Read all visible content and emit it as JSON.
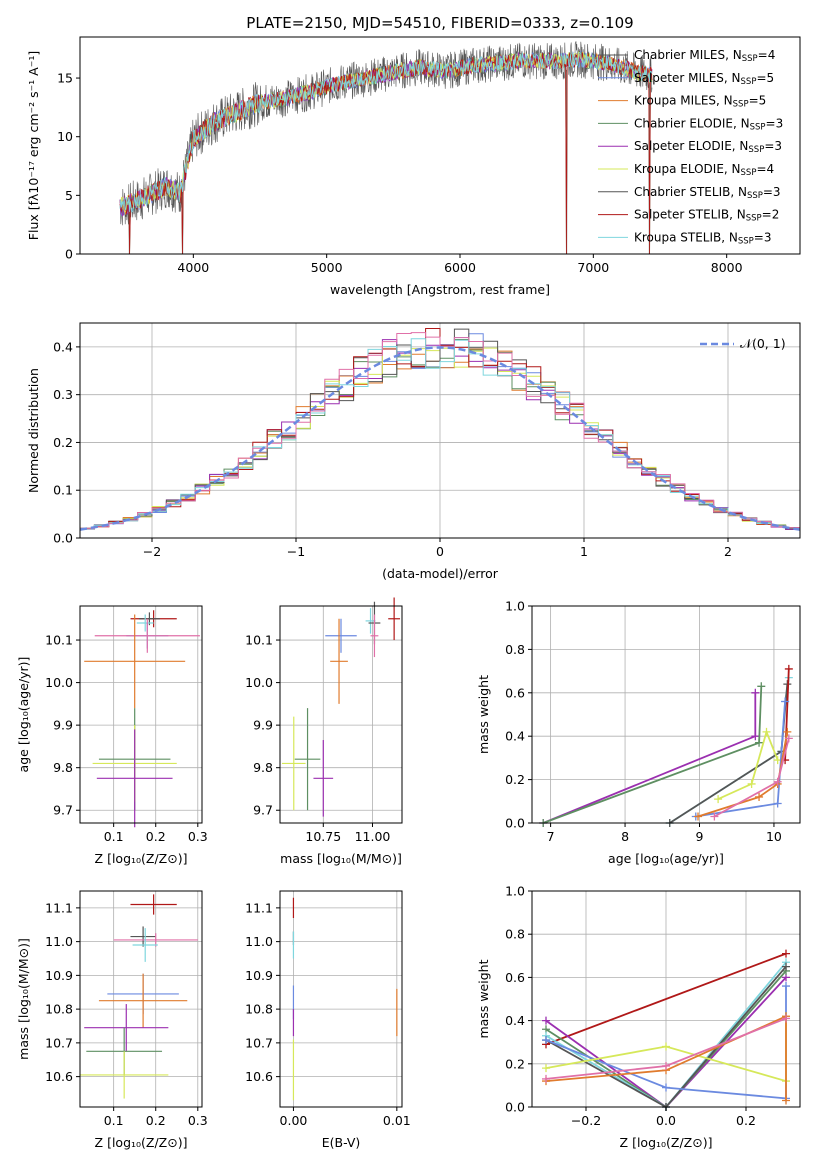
{
  "colors": {
    "Chabrier MILES": "#6b8ae0",
    "Salpeter MILES": "#5a7ad6",
    "Kroupa MILES": "#e07b2e",
    "Chabrier ELODIE": "#5e8f62",
    "Salpeter ELODIE": "#9b2fb0",
    "Kroupa ELODIE": "#d6e85a",
    "Chabrier STELIB": "#555555",
    "Salpeter STELIB": "#b01818",
    "Kroupa STELIB": "#7fd6de",
    "pink": "#e070a8"
  },
  "chart_data": [
    {
      "id": "spectrum",
      "type": "line",
      "title": "PLATE=2150, MJD=54510, FIBERID=0333, z=0.109",
      "xlabel": "wavelength [Angstrom, rest frame]",
      "ylabel": "Flux [fλ10⁻¹⁷ erg cm⁻² s⁻¹ A⁻¹]",
      "xlim": [
        3150,
        8550
      ],
      "ylim": [
        0,
        18.5
      ],
      "xticks": [
        4000,
        5000,
        6000,
        7000,
        8000
      ],
      "yticks": [
        0,
        5,
        10,
        15
      ],
      "legend_position": "right",
      "legend": [
        {
          "label": "Chabrier MILES, N",
          "sub": "SSP",
          "suffix": "=4",
          "color_key": "Chabrier STELIB"
        },
        {
          "label": "Salpeter MILES, N",
          "sub": "SSP",
          "suffix": "=5",
          "color_key": "Chabrier MILES"
        },
        {
          "label": "Kroupa MILES, N",
          "sub": "SSP",
          "suffix": "=5",
          "color_key": "Kroupa MILES"
        },
        {
          "label": "Chabrier ELODIE, N",
          "sub": "SSP",
          "suffix": "=3",
          "color_key": "Chabrier ELODIE"
        },
        {
          "label": "Salpeter ELODIE, N",
          "sub": "SSP",
          "suffix": "=3",
          "color_key": "Salpeter ELODIE"
        },
        {
          "label": "Kroupa ELODIE, N",
          "sub": "SSP",
          "suffix": "=4",
          "color_key": "Kroupa ELODIE"
        },
        {
          "label": "Chabrier STELIB, N",
          "sub": "SSP",
          "suffix": "=3",
          "color_key": "Chabrier STELIB"
        },
        {
          "label": "Salpeter STELIB, N",
          "sub": "SSP",
          "suffix": "=2",
          "color_key": "Salpeter STELIB"
        },
        {
          "label": "Kroupa STELIB, N",
          "sub": "SSP",
          "suffix": "=3",
          "color_key": "Kroupa STELIB"
        }
      ],
      "continuum": [
        [
          3450,
          4.0
        ],
        [
          3600,
          4.6
        ],
        [
          3800,
          5.8
        ],
        [
          3900,
          5.2
        ],
        [
          4000,
          9.8
        ],
        [
          4150,
          11.2
        ],
        [
          4300,
          12.0
        ],
        [
          4500,
          12.9
        ],
        [
          4700,
          13.3
        ],
        [
          4900,
          13.9
        ],
        [
          5100,
          14.6
        ],
        [
          5300,
          15.0
        ],
        [
          5500,
          15.5
        ],
        [
          5700,
          15.9
        ],
        [
          5900,
          15.6
        ],
        [
          6100,
          16.1
        ],
        [
          6300,
          16.3
        ],
        [
          6500,
          16.5
        ],
        [
          6700,
          16.4
        ],
        [
          6900,
          16.6
        ],
        [
          7100,
          16.3
        ],
        [
          7300,
          15.6
        ],
        [
          7400,
          15.3
        ]
      ],
      "drops": [
        3520,
        3920,
        6800,
        7420
      ]
    },
    {
      "id": "residuals",
      "type": "area",
      "xlabel": "(data-model)/error",
      "ylabel": "Normed distribution",
      "xlim": [
        -2.5,
        2.5
      ],
      "ylim": [
        0,
        0.45
      ],
      "xticks": [
        -2,
        -1,
        0,
        1,
        2
      ],
      "ytick_labels": [
        "0.0",
        "0.1",
        "0.2",
        "0.3",
        "0.4"
      ],
      "legend": "𝒩(0, 1)",
      "legend_position": "top-right",
      "bin_width": 0.1
    },
    {
      "id": "Z-age",
      "type": "scatter",
      "xlabel": "Z [log₁₀(Z/Z⊙)]",
      "ylabel": "age  [log₁₀(age/yr)]",
      "xlim": [
        0.02,
        0.31
      ],
      "ylim": [
        9.67,
        10.18
      ],
      "xtick_labels": [
        "0.1",
        "0.2",
        "0.3"
      ],
      "ytick_labels": [
        "9.7",
        "9.8",
        "9.9",
        "10.0",
        "10.1"
      ],
      "points": [
        {
          "c": "Salpeter STELIB",
          "x": 0.195,
          "xe": 0.055,
          "y": 10.15,
          "ye": 0.02
        },
        {
          "c": "Chabrier STELIB",
          "x": 0.185,
          "xe": 0.025,
          "y": 10.15,
          "ye": 0.015
        },
        {
          "c": "Kroupa STELIB",
          "x": 0.175,
          "xe": 0.02,
          "y": 10.14,
          "ye": 0.02
        },
        {
          "c": "Chabrier MILES",
          "x": 0.18,
          "xe": 0.05,
          "y": 10.11,
          "ye": 0.03
        },
        {
          "c": "pink",
          "x": 0.18,
          "xe": 0.125,
          "y": 10.11,
          "ye": 0.04
        },
        {
          "c": "Kroupa MILES",
          "x": 0.15,
          "xe": 0.12,
          "y": 10.05,
          "ye": 0.11
        },
        {
          "c": "Chabrier ELODIE",
          "x": 0.15,
          "xe": 0.085,
          "y": 9.82,
          "ye": 0.12
        },
        {
          "c": "Kroupa ELODIE",
          "x": 0.15,
          "xe": 0.1,
          "y": 9.81,
          "ye": 0.09
        },
        {
          "c": "Salpeter ELODIE",
          "x": 0.15,
          "xe": 0.09,
          "y": 9.775,
          "ye": 0.115
        }
      ]
    },
    {
      "id": "mass-age",
      "type": "scatter",
      "xlabel": "mass [log₁₀(M/M⊙)]",
      "ylabel": "",
      "xlim": [
        10.53,
        11.15
      ],
      "ylim": [
        9.67,
        10.18
      ],
      "xtick_labels": [
        "10.75",
        "11.00"
      ],
      "ytick_labels": [
        "9.7",
        "9.8",
        "9.9",
        "10.0",
        "10.1"
      ],
      "points": [
        {
          "c": "Salpeter STELIB",
          "x": 11.11,
          "xe": 0.03,
          "y": 10.15,
          "ye": 0.05
        },
        {
          "c": "Kroupa STELIB",
          "x": 10.99,
          "xe": 0.025,
          "y": 10.145,
          "ye": 0.03
        },
        {
          "c": "Chabrier STELIB",
          "x": 11.01,
          "xe": 0.03,
          "y": 10.14,
          "ye": 0.05
        },
        {
          "c": "Chabrier MILES",
          "x": 10.84,
          "xe": 0.08,
          "y": 10.11,
          "ye": 0.04
        },
        {
          "c": "pink",
          "x": 11.01,
          "xe": 0.02,
          "y": 10.11,
          "ye": 0.05
        },
        {
          "c": "Kroupa MILES",
          "x": 10.83,
          "xe": 0.045,
          "y": 10.05,
          "ye": 0.1
        },
        {
          "c": "Chabrier ELODIE",
          "x": 10.67,
          "xe": 0.065,
          "y": 9.82,
          "ye": 0.12
        },
        {
          "c": "Kroupa ELODIE",
          "x": 10.6,
          "xe": 0.06,
          "y": 9.81,
          "ye": 0.11
        },
        {
          "c": "Salpeter ELODIE",
          "x": 10.75,
          "xe": 0.05,
          "y": 9.775,
          "ye": 0.09
        }
      ]
    },
    {
      "id": "age-weight",
      "type": "line",
      "xlabel": "age  [log₁₀(age/yr)]",
      "ylabel": "mass weight",
      "xlim": [
        6.75,
        10.35
      ],
      "ylim": [
        0,
        1.0
      ],
      "xtick_labels": [
        "7",
        "8",
        "9",
        "10"
      ],
      "ytick_labels": [
        "0.0",
        "0.2",
        "0.4",
        "0.6",
        "0.8",
        "1.0"
      ],
      "series": [
        {
          "c": "Salpeter ELODIE",
          "pts": [
            [
              6.9,
              0.0
            ],
            [
              9.75,
              0.4
            ],
            [
              9.75,
              0.6
            ]
          ]
        },
        {
          "c": "Chabrier ELODIE",
          "pts": [
            [
              6.9,
              0.0
            ],
            [
              9.8,
              0.37
            ],
            [
              9.83,
              0.63
            ]
          ]
        },
        {
          "c": "Kroupa STELIB",
          "pts": [
            [
              8.6,
              0.0
            ],
            [
              10.1,
              0.33
            ],
            [
              10.15,
              0.56
            ],
            [
              10.2,
              0.67
            ]
          ]
        },
        {
          "c": "Chabrier STELIB",
          "pts": [
            [
              8.6,
              0.0
            ],
            [
              10.1,
              0.33
            ],
            [
              10.18,
              0.64
            ]
          ]
        },
        {
          "c": "Salpeter STELIB",
          "pts": [
            [
              10.15,
              0.29
            ],
            [
              10.2,
              0.71
            ]
          ]
        },
        {
          "c": "Kroupa ELODIE",
          "pts": [
            [
              9.25,
              0.11
            ],
            [
              9.7,
              0.18
            ],
            [
              9.9,
              0.42
            ],
            [
              10.05,
              0.29
            ]
          ]
        },
        {
          "c": "Chabrier MILES",
          "pts": [
            [
              8.95,
              0.03
            ],
            [
              10.05,
              0.09
            ],
            [
              10.15,
              0.56
            ]
          ]
        },
        {
          "c": "Kroupa MILES",
          "pts": [
            [
              8.98,
              0.03
            ],
            [
              9.8,
              0.12
            ],
            [
              10.05,
              0.18
            ],
            [
              10.18,
              0.42
            ]
          ]
        },
        {
          "c": "pink",
          "pts": [
            [
              9.2,
              0.03
            ],
            [
              10.05,
              0.19
            ],
            [
              10.2,
              0.39
            ]
          ]
        }
      ]
    },
    {
      "id": "Z-mass",
      "type": "scatter",
      "xlabel": "Z [log₁₀(Z/Z⊙)]",
      "ylabel": "mass [log₁₀(M/M⊙)]",
      "xlim": [
        0.02,
        0.31
      ],
      "ylim": [
        10.51,
        11.15
      ],
      "xtick_labels": [
        "0.1",
        "0.2",
        "0.3"
      ],
      "ytick_labels": [
        "10.6",
        "10.7",
        "10.8",
        "10.9",
        "11.0",
        "11.1"
      ],
      "points": [
        {
          "c": "Salpeter STELIB",
          "x": 0.195,
          "xe": 0.055,
          "y": 11.11,
          "ye": 0.03
        },
        {
          "c": "Chabrier STELIB",
          "x": 0.17,
          "xe": 0.03,
          "y": 11.015,
          "ye": 0.03
        },
        {
          "c": "pink",
          "x": 0.2,
          "xe": 0.1,
          "y": 11.005,
          "ye": 0.02
        },
        {
          "c": "Kroupa STELIB",
          "x": 0.175,
          "xe": 0.03,
          "y": 10.99,
          "ye": 0.05
        },
        {
          "c": "Chabrier MILES",
          "x": 0.17,
          "xe": 0.085,
          "y": 10.845,
          "ye": 0.06
        },
        {
          "c": "Kroupa MILES",
          "x": 0.17,
          "xe": 0.105,
          "y": 10.825,
          "ye": 0.08
        },
        {
          "c": "Salpeter ELODIE",
          "x": 0.13,
          "xe": 0.1,
          "y": 10.745,
          "ye": 0.07
        },
        {
          "c": "Chabrier ELODIE",
          "x": 0.125,
          "xe": 0.09,
          "y": 10.675,
          "ye": 0.07
        },
        {
          "c": "Kroupa ELODIE",
          "x": 0.125,
          "xe": 0.105,
          "y": 10.605,
          "ye": 0.07
        }
      ]
    },
    {
      "id": "ebv-mass",
      "type": "scatter",
      "xlabel": "E(B-V)",
      "ylabel": "",
      "xlim": [
        -0.0013,
        0.0105
      ],
      "ylim": [
        10.51,
        11.15
      ],
      "xtick_labels": [
        "0.00",
        "0.01"
      ],
      "ytick_labels": [
        "10.6",
        "10.7",
        "10.8",
        "10.9",
        "11.0",
        "11.1"
      ],
      "points": [
        {
          "c": "Salpeter STELIB",
          "x": 0.0,
          "xe": 0,
          "y": 11.1,
          "ye": 0.03
        },
        {
          "c": "Chabrier STELIB",
          "x": 0.0,
          "xe": 0,
          "y": 11.01,
          "ye": 0.02
        },
        {
          "c": "Kroupa STELIB",
          "x": 0.0,
          "xe": 0,
          "y": 10.99,
          "ye": 0.04
        },
        {
          "c": "Chabrier MILES",
          "x": 0.0,
          "xe": 0,
          "y": 10.82,
          "ye": 0.05
        },
        {
          "c": "Salpeter ELODIE",
          "x": 0.0,
          "xe": 0,
          "y": 10.76,
          "ye": 0.04
        },
        {
          "c": "Kroupa ELODIE",
          "x": 0.0,
          "xe": 0,
          "y": 10.62,
          "ye": 0.09
        },
        {
          "c": "Kroupa MILES",
          "x": 0.01,
          "xe": 0,
          "y": 10.79,
          "ye": 0.07
        }
      ]
    },
    {
      "id": "Z-weight",
      "type": "line",
      "xlabel": "Z [log₁₀(Z/Z⊙)]",
      "ylabel": "mass weight",
      "xlim": [
        -0.335,
        0.335
      ],
      "ylim": [
        0,
        1.0
      ],
      "xtick_labels": [
        "−0.2",
        "0.0",
        "0.2"
      ],
      "xtick_values": [
        -0.2,
        0.0,
        0.2
      ],
      "ytick_labels": [
        "0.0",
        "0.2",
        "0.4",
        "0.6",
        "0.8",
        "1.0"
      ],
      "series": [
        {
          "c": "Salpeter STELIB",
          "pts": [
            [
              -0.3,
              0.29
            ],
            [
              0.3,
              0.71
            ]
          ]
        },
        {
          "c": "Salpeter ELODIE",
          "pts": [
            [
              -0.3,
              0.4
            ],
            [
              0.0,
              0.0
            ],
            [
              0.3,
              0.6
            ]
          ]
        },
        {
          "c": "Chabrier ELODIE",
          "pts": [
            [
              -0.3,
              0.36
            ],
            [
              0.0,
              0.0
            ],
            [
              0.3,
              0.63
            ]
          ]
        },
        {
          "c": "Kroupa STELIB",
          "pts": [
            [
              -0.3,
              0.33
            ],
            [
              0.0,
              0.0
            ],
            [
              0.3,
              0.67
            ]
          ]
        },
        {
          "c": "Chabrier STELIB",
          "pts": [
            [
              -0.3,
              0.31
            ],
            [
              0.0,
              0.0
            ],
            [
              0.3,
              0.65
            ]
          ]
        },
        {
          "c": "Chabrier MILES",
          "pts": [
            [
              -0.3,
              0.31
            ],
            [
              0.0,
              0.09
            ],
            [
              0.3,
              0.04
            ],
            [
              0.3,
              0.56
            ]
          ]
        },
        {
          "c": "Kroupa ELODIE",
          "pts": [
            [
              -0.3,
              0.18
            ],
            [
              0.0,
              0.28
            ],
            [
              0.3,
              0.12
            ],
            [
              0.3,
              0.42
            ]
          ]
        },
        {
          "c": "Kroupa MILES",
          "pts": [
            [
              -0.3,
              0.12
            ],
            [
              0.0,
              0.17
            ],
            [
              0.3,
              0.42
            ],
            [
              0.3,
              0.03
            ]
          ]
        },
        {
          "c": "pink",
          "pts": [
            [
              -0.3,
              0.13
            ],
            [
              0.0,
              0.19
            ],
            [
              0.3,
              0.41
            ]
          ]
        }
      ]
    }
  ]
}
